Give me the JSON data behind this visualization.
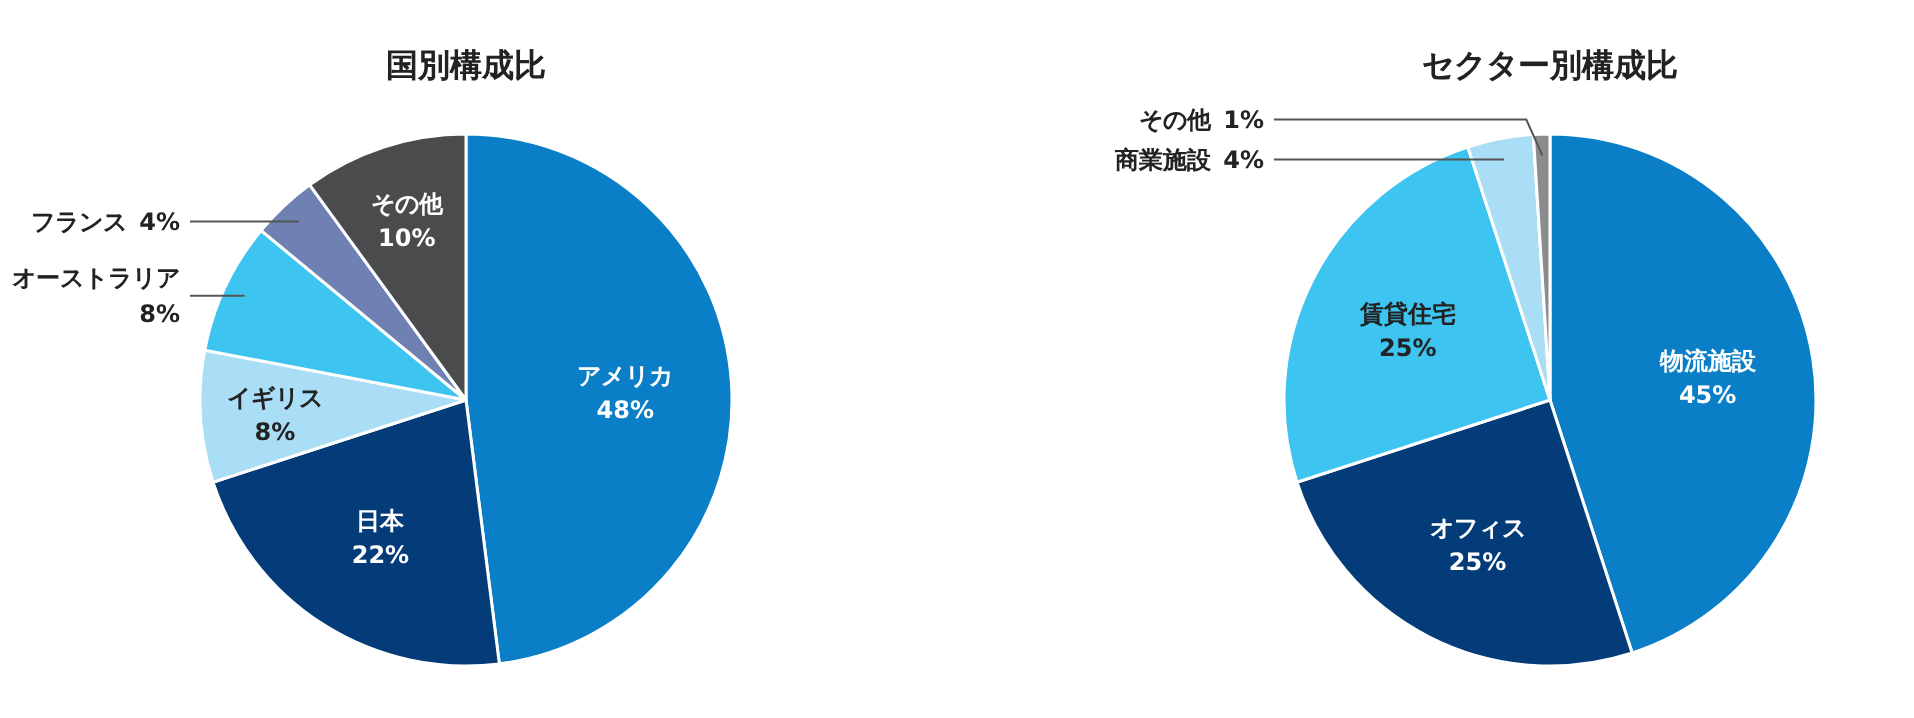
{
  "chart_data": [
    {
      "type": "pie",
      "title": "国別構成比",
      "categories": [
        "アメリカ",
        "日本",
        "イギリス",
        "オーストラリア",
        "フランス",
        "その他"
      ],
      "values": [
        48,
        22,
        8,
        8,
        4,
        10
      ],
      "value_labels": [
        "48%",
        "22%",
        "8%",
        "8%",
        "4%",
        "10%"
      ],
      "colors": [
        "#0a7fc7",
        "#033c78",
        "#a9def6",
        "#3ec4f0",
        "#6f80b3",
        "#4a4b4d"
      ]
    },
    {
      "type": "pie",
      "title": "セクター別構成比",
      "categories": [
        "物流施設",
        "オフィス",
        "賃貸住宅",
        "商業施設",
        "その他"
      ],
      "values": [
        45,
        25,
        25,
        4,
        1
      ],
      "value_labels": [
        "45%",
        "25%",
        "25%",
        "4%",
        "1%"
      ],
      "colors": [
        "#0a7fc7",
        "#033c78",
        "#3ec4f0",
        "#a9def6",
        "#8a8c8e"
      ]
    }
  ]
}
